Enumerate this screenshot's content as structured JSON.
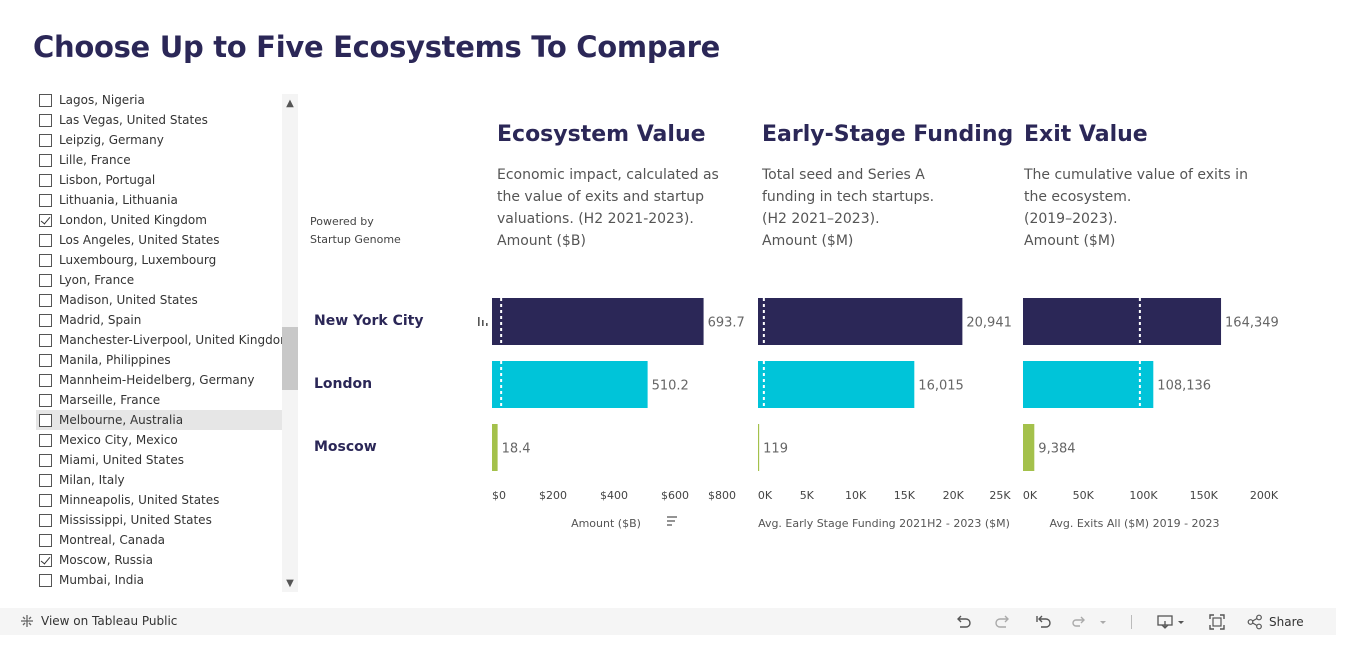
{
  "title": "Choose Up to Five Ecosystems To Compare",
  "powered_by": [
    "Powered by",
    "Startup Genome"
  ],
  "filter": {
    "items": [
      {
        "label": "Lagos, Nigeria",
        "checked": false
      },
      {
        "label": "Las Vegas, United States",
        "checked": false
      },
      {
        "label": "Leipzig, Germany",
        "checked": false
      },
      {
        "label": "Lille, France",
        "checked": false
      },
      {
        "label": "Lisbon, Portugal",
        "checked": false
      },
      {
        "label": "Lithuania, Lithuania",
        "checked": false
      },
      {
        "label": "London, United Kingdom",
        "checked": true
      },
      {
        "label": "Los Angeles, United States",
        "checked": false
      },
      {
        "label": "Luxembourg, Luxembourg",
        "checked": false
      },
      {
        "label": "Lyon, France",
        "checked": false
      },
      {
        "label": "Madison, United States",
        "checked": false
      },
      {
        "label": "Madrid, Spain",
        "checked": false
      },
      {
        "label": "Manchester-Liverpool, United Kingdom",
        "checked": false
      },
      {
        "label": "Manila, Philippines",
        "checked": false
      },
      {
        "label": "Mannheim-Heidelberg, Germany",
        "checked": false
      },
      {
        "label": "Marseille, France",
        "checked": false
      },
      {
        "label": "Melbourne, Australia",
        "checked": false,
        "highlighted": true
      },
      {
        "label": "Mexico City, Mexico",
        "checked": false
      },
      {
        "label": "Miami, United States",
        "checked": false
      },
      {
        "label": "Milan, Italy",
        "checked": false
      },
      {
        "label": "Minneapolis, United States",
        "checked": false
      },
      {
        "label": "Mississippi, United States",
        "checked": false
      },
      {
        "label": "Montreal, Canada",
        "checked": false
      },
      {
        "label": "Moscow, Russia",
        "checked": true
      },
      {
        "label": "Mumbai, India",
        "checked": false
      }
    ]
  },
  "panels": [
    {
      "title": "Ecosystem Value",
      "desc": [
        "Economic impact, calculated as",
        "the value of exits and startup",
        "valuations. (H2 2021-2023).",
        "Amount ($B)"
      ]
    },
    {
      "title": "Early-Stage Funding",
      "desc": [
        "Total seed and Series A",
        "funding in tech startups.",
        "(H2 2021–2023).",
        "Amount ($M)"
      ]
    },
    {
      "title": "Exit Value",
      "desc": [
        "The cumulative value of exits in",
        "the ecosystem.",
        "(2019–2023).",
        "Amount ($M)"
      ]
    }
  ],
  "colors": {
    "new_york": "#2b2757",
    "london": "#00c4d9",
    "moscow": "#a4c14b",
    "title": "#2b2757",
    "label": "#666666"
  },
  "chart_data": [
    {
      "type": "bar",
      "orientation": "horizontal",
      "categories": [
        "New York City",
        "London",
        "Moscow"
      ],
      "values": [
        693.7,
        510.2,
        18.4
      ],
      "value_labels": [
        "693.7",
        "510.2",
        "18.4"
      ],
      "reference_values": [
        30,
        30
      ],
      "xlim": [
        0,
        800
      ],
      "ticks": [
        0,
        200,
        400,
        600,
        800
      ],
      "tick_labels": [
        "$0",
        "$200",
        "$400",
        "$600",
        "$800"
      ],
      "xlabel": "Amount ($B)"
    },
    {
      "type": "bar",
      "orientation": "horizontal",
      "categories": [
        "New York City",
        "London",
        "Moscow"
      ],
      "values": [
        20941,
        16015,
        119
      ],
      "value_labels": [
        "20,941",
        "16,015",
        "119"
      ],
      "reference_values": [
        600,
        600
      ],
      "xlim": [
        0,
        25000
      ],
      "ticks": [
        0,
        5000,
        10000,
        15000,
        20000,
        25000
      ],
      "tick_labels": [
        "0K",
        "5K",
        "10K",
        "15K",
        "20K",
        "25K"
      ],
      "xlabel": "Avg. Early Stage Funding 2021H2 - 2023 ($M)"
    },
    {
      "type": "bar",
      "orientation": "horizontal",
      "categories": [
        "New York City",
        "London",
        "Moscow"
      ],
      "values": [
        164349,
        108136,
        9384
      ],
      "value_labels": [
        "164,349",
        "108,136",
        "9,384"
      ],
      "reference_values": [
        97000,
        97000
      ],
      "xlim": [
        0,
        200000
      ],
      "ticks": [
        0,
        50000,
        100000,
        150000,
        200000
      ],
      "tick_labels": [
        "0K",
        "50K",
        "100K",
        "150K",
        "200K"
      ],
      "xlabel": "Avg. Exits All ($M) 2019 - 2023"
    }
  ],
  "toolbar": {
    "view_link": "View on Tableau Public",
    "share": "Share"
  }
}
